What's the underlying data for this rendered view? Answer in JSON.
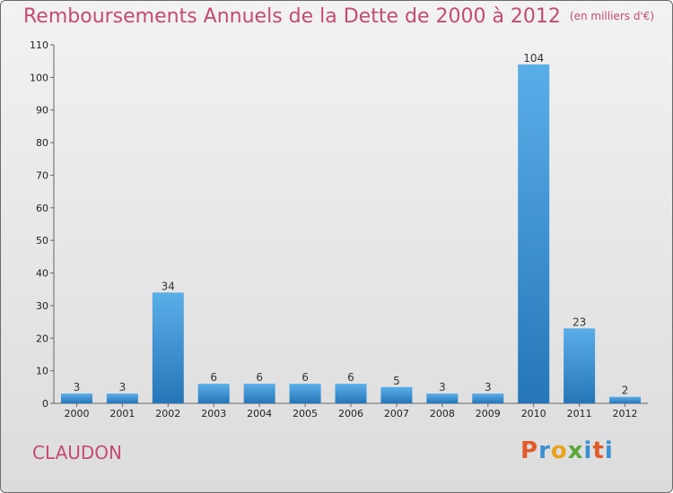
{
  "title": "Remboursements Annuels de la Dette de 2000 à 2012",
  "unit": "(en milliers d'€)",
  "commune": "CLAUDON",
  "logo": "Proxiti",
  "colors": {
    "title": "#c44b72",
    "bar_light": "#5aaee8",
    "bar_dark": "#2576b8",
    "logo_letters": [
      "#e05a2a",
      "#3a8fd0",
      "#e8a21c",
      "#5aa83a",
      "#3a8fd0",
      "#e05a2a",
      "#3a8fd0"
    ]
  },
  "chart_data": {
    "type": "bar",
    "categories": [
      "2000",
      "2001",
      "2002",
      "2003",
      "2004",
      "2005",
      "2006",
      "2007",
      "2008",
      "2009",
      "2010",
      "2011",
      "2012"
    ],
    "values": [
      3,
      3,
      34,
      6,
      6,
      6,
      6,
      5,
      3,
      3,
      104,
      23,
      2
    ],
    "value_labels": [
      "3",
      "3",
      "34",
      "6",
      "6",
      "6",
      "6",
      "5",
      "3",
      "3",
      "104",
      "23",
      "2"
    ],
    "y_ticks": [
      0,
      10,
      20,
      30,
      40,
      50,
      60,
      70,
      80,
      90,
      100,
      110
    ],
    "ylim": [
      0,
      110
    ],
    "grid": false
  }
}
